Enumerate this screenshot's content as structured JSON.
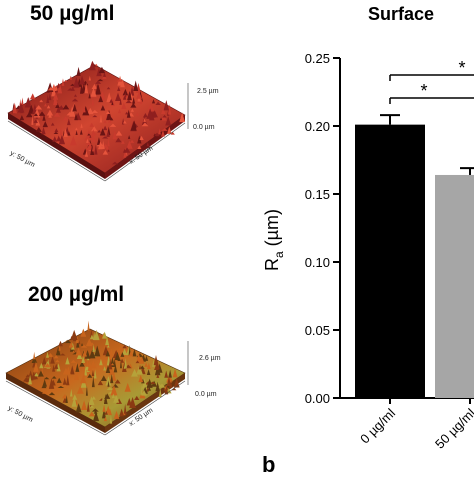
{
  "left_panels": [
    {
      "title": "50 µg/ml",
      "z_max_label": "2.5 µm",
      "z_min_label": "0.0 µm",
      "y_axis_label": "y: 50 µm",
      "x_axis_label": "x: 50 µm",
      "surface_colors": [
        "#8f1f1f",
        "#c83a2d",
        "#e5543c",
        "#6b1414"
      ]
    },
    {
      "title": "200 µg/ml",
      "z_max_label": "2.6 µm",
      "z_min_label": "0.0 µm",
      "y_axis_label": "y: 50 µm",
      "x_axis_label": "x: 50 µm",
      "surface_colors": [
        "#8a3a12",
        "#c8641c",
        "#b5a23a",
        "#5e3a10"
      ]
    }
  ],
  "panel_letter": "b",
  "chart_data": {
    "type": "bar",
    "title": "Surface",
    "ylabel_main": "R",
    "ylabel_sub": "a",
    "ylabel_unit": " (µm)",
    "ylim": [
      0,
      0.25
    ],
    "yticks": [
      "0.00",
      "0.05",
      "0.10",
      "0.15",
      "0.20",
      "0.25"
    ],
    "ytick_values": [
      0,
      0.05,
      0.1,
      0.15,
      0.2,
      0.25
    ],
    "categories": [
      "0 µg/ml",
      "50 µg/ml"
    ],
    "values": [
      0.201,
      0.164
    ],
    "errors": [
      0.007,
      0.005
    ],
    "colors": [
      "#000000",
      "#a6a6a6"
    ],
    "significance": [
      "*",
      "*"
    ]
  }
}
